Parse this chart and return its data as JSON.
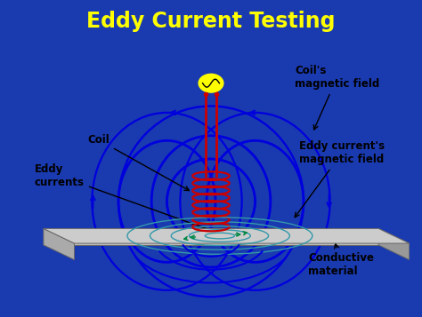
{
  "title": "Eddy Current Testing",
  "title_color": "#FFFF00",
  "title_bg": "#1a1aaa",
  "bg_color": "#1a3ab0",
  "diagram_bg": "#FFFFFF",
  "coil_color": "#CC0000",
  "field_color": "#0000DD",
  "eddy_color": "#3399AA",
  "eddy_green": "#008844",
  "plate_top": "#BBBBBB",
  "plate_left": "#888888",
  "plate_front": "#999999",
  "plate_right": "#AAAAAA",
  "source_color": "#FFFF00",
  "labels": {
    "coil": "Coil",
    "coils_field": "Coil's\nmagnetic field",
    "eddy_currents": "Eddy\ncurrents",
    "eddy_field": "Eddy current's\nmagnetic field",
    "conductive": "Conductive\nmaterial"
  },
  "label_fs": 8.5
}
